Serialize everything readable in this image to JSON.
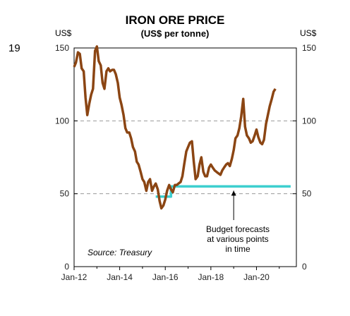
{
  "page_number": "19",
  "chart_data": {
    "type": "line",
    "title": "IRON ORE PRICE",
    "subtitle": "(US$ per tonne)",
    "ylabel_left": "US$",
    "ylabel_right": "US$",
    "xlim": [
      2012.0,
      2021.75
    ],
    "ylim": [
      0,
      150
    ],
    "yticks": [
      0,
      50,
      100,
      150
    ],
    "ytick_labels": [
      "0",
      "50",
      "100",
      "150"
    ],
    "xticks": [
      2012.0,
      2014.0,
      2016.0,
      2018.0,
      2020.0
    ],
    "xtick_labels": [
      "Jan-12",
      "Jan-14",
      "Jan-16",
      "Jan-18",
      "Jan-20"
    ],
    "grid": "horizontal dashed at 50, 100, 150",
    "colors": {
      "price": "#8B4513",
      "forecast": "#3ECFCF",
      "grid": "#999999"
    },
    "series": [
      {
        "x": [
          2012.0,
          2012.08,
          2012.17,
          2012.25,
          2012.33,
          2012.42,
          2012.5,
          2012.58,
          2012.67,
          2012.75,
          2012.83,
          2012.92,
          2013.0,
          2013.08,
          2013.17,
          2013.25,
          2013.33,
          2013.42,
          2013.5,
          2013.58,
          2013.67,
          2013.75,
          2013.83,
          2013.92,
          2014.0,
          2014.08,
          2014.17,
          2014.25,
          2014.33,
          2014.42,
          2014.5,
          2014.58,
          2014.67,
          2014.75,
          2014.83,
          2014.92,
          2015.0,
          2015.08,
          2015.17,
          2015.25,
          2015.33,
          2015.42,
          2015.5,
          2015.58,
          2015.67,
          2015.75,
          2015.83,
          2015.92,
          2016.0,
          2016.08,
          2016.17,
          2016.25,
          2016.33,
          2016.42,
          2016.5,
          2016.58,
          2016.67,
          2016.75,
          2016.83,
          2016.92,
          2017.0,
          2017.08,
          2017.17,
          2017.25,
          2017.33,
          2017.42,
          2017.5,
          2017.58,
          2017.67,
          2017.75,
          2017.83,
          2017.92,
          2018.0,
          2018.08,
          2018.17,
          2018.25,
          2018.33,
          2018.42,
          2018.5,
          2018.58,
          2018.67,
          2018.75,
          2018.83,
          2018.92,
          2019.0,
          2019.08,
          2019.17,
          2019.25,
          2019.33,
          2019.42,
          2019.5,
          2019.58,
          2019.67,
          2019.75,
          2019.83,
          2019.92,
          2020.0,
          2020.08,
          2020.17,
          2020.25,
          2020.33,
          2020.42,
          2020.5,
          2020.58,
          2020.67,
          2020.75,
          2020.83
        ],
        "values": [
          137,
          140,
          147,
          146,
          136,
          134,
          116,
          104,
          112,
          118,
          122,
          148,
          151,
          141,
          138,
          126,
          122,
          134,
          136,
          134,
          135,
          135,
          132,
          126,
          116,
          111,
          104,
          95,
          92,
          92,
          88,
          82,
          79,
          72,
          70,
          65,
          60,
          58,
          52,
          58,
          60,
          52,
          55,
          57,
          53,
          45,
          40,
          42,
          46,
          52,
          56,
          53,
          51,
          56,
          56,
          57,
          58,
          62,
          70,
          79,
          82,
          85,
          86,
          72,
          60,
          62,
          70,
          75,
          65,
          62,
          62,
          68,
          70,
          68,
          66,
          65,
          64,
          63,
          66,
          68,
          70,
          71,
          69,
          74,
          80,
          88,
          90,
          95,
          103,
          115,
          96,
          90,
          88,
          85,
          86,
          90,
          94,
          89,
          85,
          84,
          87,
          98,
          104,
          110,
          115,
          120,
          122
        ]
      },
      {
        "x": [
          2015.58,
          2016.25,
          2016.25,
          2021.5
        ],
        "values": [
          48,
          48,
          55,
          55
        ]
      }
    ],
    "annotations": {
      "source": "Source: Treasury",
      "budget_lines": [
        "Budget forecasts",
        "at various points",
        "in time"
      ],
      "arrow_target_x": 2019.0,
      "arrow_target_y": 55
    }
  }
}
